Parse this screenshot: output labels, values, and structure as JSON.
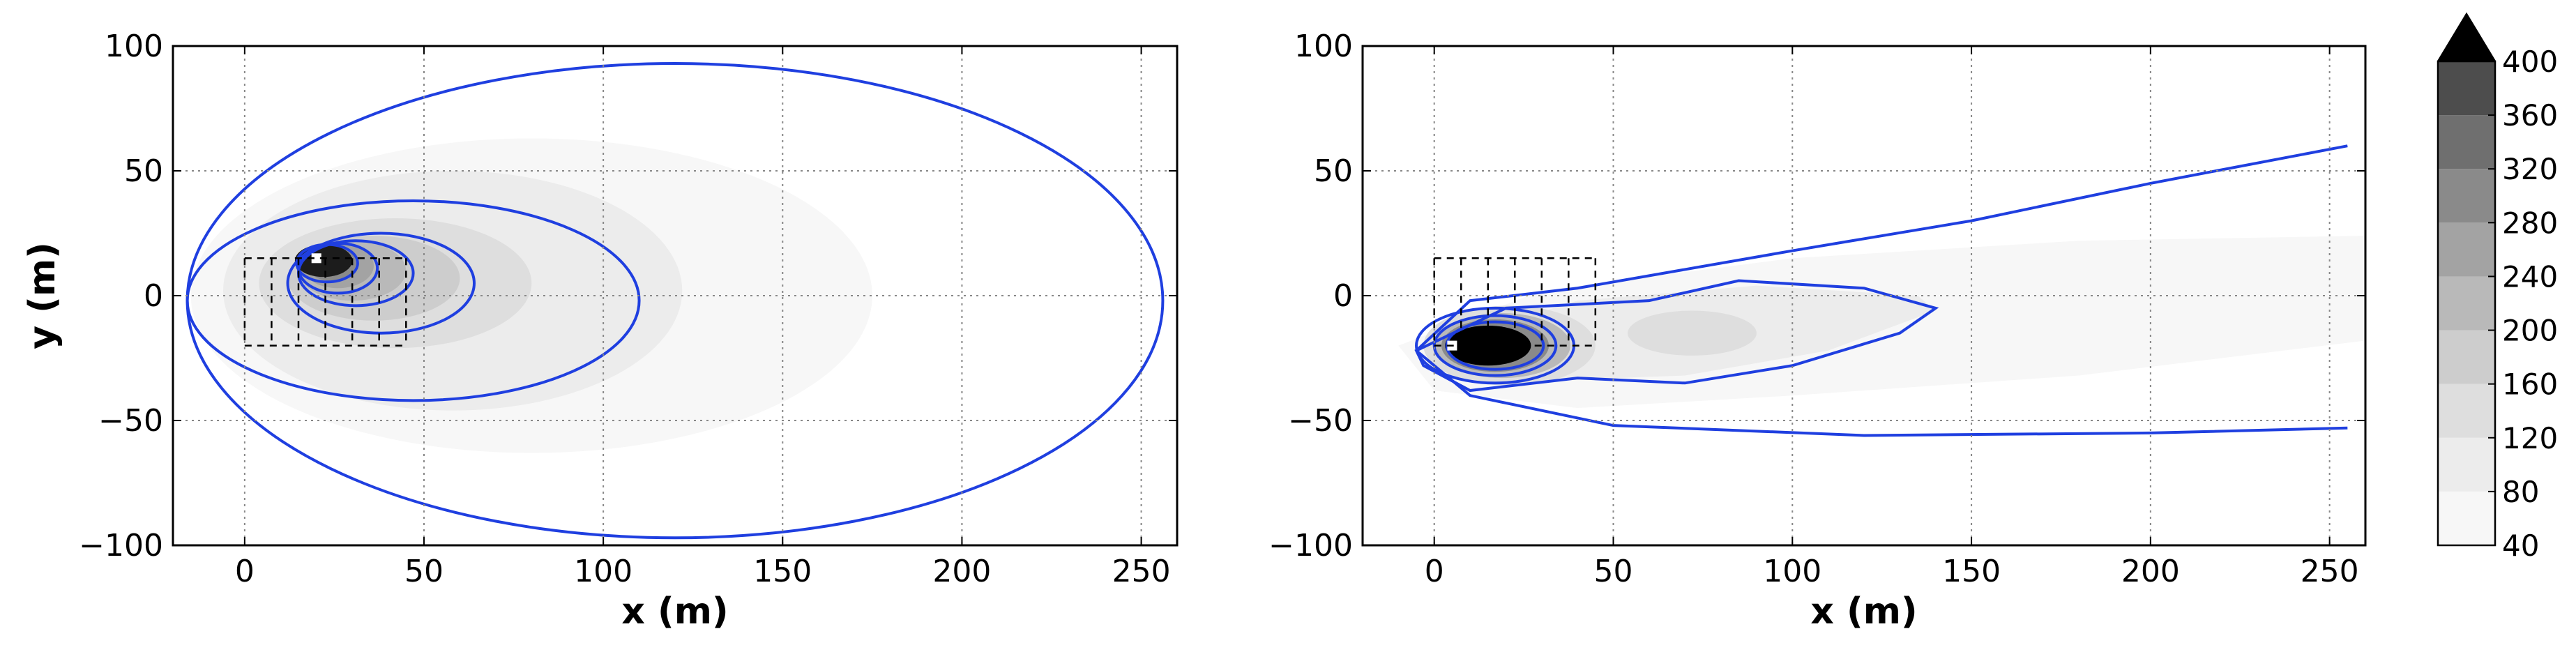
{
  "chart_data": [
    {
      "type": "contour",
      "xlabel": "x (m)",
      "ylabel": "y (m)",
      "xlim": [
        -20,
        260
      ],
      "ylim": [
        -100,
        100
      ],
      "xticks": [
        0,
        50,
        100,
        150,
        200,
        250
      ],
      "yticks": [
        -100,
        -50,
        0,
        50,
        100
      ],
      "xtick_labels": [
        "0",
        "50",
        "100",
        "150",
        "200",
        "250"
      ],
      "ytick_labels": [
        "−100",
        "−50",
        "0",
        "50",
        "100"
      ],
      "grid": true,
      "source_marker": {
        "x": 20,
        "y": 15
      },
      "dashed_grid_region": {
        "x": [
          0,
          45
        ],
        "y": [
          -20,
          15
        ]
      },
      "filled_contours": [
        {
          "level_min": 40,
          "center": [
            80,
            0
          ],
          "rx": 95,
          "ry": 63
        },
        {
          "level_min": 80,
          "center": [
            58,
            2
          ],
          "rx": 64,
          "ry": 48
        },
        {
          "level_min": 120,
          "center": [
            42,
            5
          ],
          "rx": 38,
          "ry": 26
        },
        {
          "level_min": 160,
          "center": [
            36,
            7
          ],
          "rx": 24,
          "ry": 17
        },
        {
          "level_min": 200,
          "center": [
            30,
            10
          ],
          "rx": 15,
          "ry": 12
        },
        {
          "level_min": 240,
          "center": [
            26,
            12
          ],
          "rx": 10,
          "ry": 9
        },
        {
          "level_min": 280,
          "center": [
            24,
            13
          ],
          "rx": 7,
          "ry": 7
        },
        {
          "level_min": 400,
          "center": [
            22,
            14
          ],
          "rx": 8,
          "ry": 6.5
        }
      ],
      "contour_lines": [
        {
          "center": [
            120,
            -2
          ],
          "rx": 136,
          "ry": 95
        },
        {
          "center": [
            47,
            -2
          ],
          "rx": 63,
          "ry": 40
        },
        {
          "center": [
            38,
            5
          ],
          "rx": 26,
          "ry": 20
        },
        {
          "center": [
            31,
            9
          ],
          "rx": 16,
          "ry": 13
        },
        {
          "center": [
            26,
            11
          ],
          "rx": 11,
          "ry": 10
        },
        {
          "center": [
            23,
            13
          ],
          "rx": 8.5,
          "ry": 7.5
        }
      ]
    },
    {
      "type": "contour",
      "xlabel": "x (m)",
      "ylabel": "",
      "xlim": [
        -20,
        260
      ],
      "ylim": [
        -100,
        100
      ],
      "xticks": [
        0,
        50,
        100,
        150,
        200,
        250
      ],
      "yticks": [
        -100,
        -50,
        0,
        50,
        100
      ],
      "xtick_labels": [
        "0",
        "50",
        "100",
        "150",
        "200",
        "250"
      ],
      "ytick_labels": [
        "−100",
        "−50",
        "0",
        "50",
        "100"
      ],
      "grid": true,
      "source_marker": {
        "x": 5,
        "y": -20
      },
      "dashed_grid_region": {
        "x": [
          0,
          45
        ],
        "y": [
          -20,
          15
        ]
      },
      "plume_outer_line": [
        [
          -5,
          -22
        ],
        [
          10,
          -2
        ],
        [
          40,
          3
        ],
        [
          100,
          18
        ],
        [
          150,
          30
        ],
        [
          200,
          45
        ],
        [
          255,
          60
        ]
      ],
      "plume_outer_line_lower": [
        [
          -5,
          -22
        ],
        [
          10,
          -40
        ],
        [
          50,
          -52
        ],
        [
          120,
          -56
        ],
        [
          200,
          -55
        ],
        [
          255,
          -53
        ]
      ],
      "plume_inner_line": [
        [
          -5,
          -22
        ],
        [
          20,
          -5
        ],
        [
          60,
          -2
        ],
        [
          85,
          6
        ],
        [
          120,
          3
        ],
        [
          140,
          -5
        ],
        [
          130,
          -15
        ],
        [
          100,
          -28
        ],
        [
          70,
          -35
        ],
        [
          40,
          -33
        ],
        [
          10,
          -38
        ],
        [
          -3,
          -28
        ]
      ],
      "secondary_blob": {
        "center": [
          72,
          -15
        ],
        "rx": 18,
        "ry": 9
      },
      "core": {
        "center": [
          15,
          -20
        ],
        "rx": 12,
        "ry": 8
      }
    }
  ],
  "colorbar": {
    "levels": [
      40,
      80,
      120,
      160,
      200,
      240,
      280,
      320,
      360,
      400
    ],
    "tick_labels": [
      "40",
      "80",
      "120",
      "160",
      "200",
      "240",
      "280",
      "320",
      "360",
      "400"
    ],
    "colors": [
      "#f7f7f7",
      "#ececec",
      "#dedede",
      "#cdcdcd",
      "#b9b9b9",
      "#a3a3a3",
      "#8a8a8a",
      "#6f6f6f",
      "#4d4d4d",
      "#1c1c1c"
    ],
    "extend_color": "#000000"
  },
  "line_color": "#1f3fe0"
}
